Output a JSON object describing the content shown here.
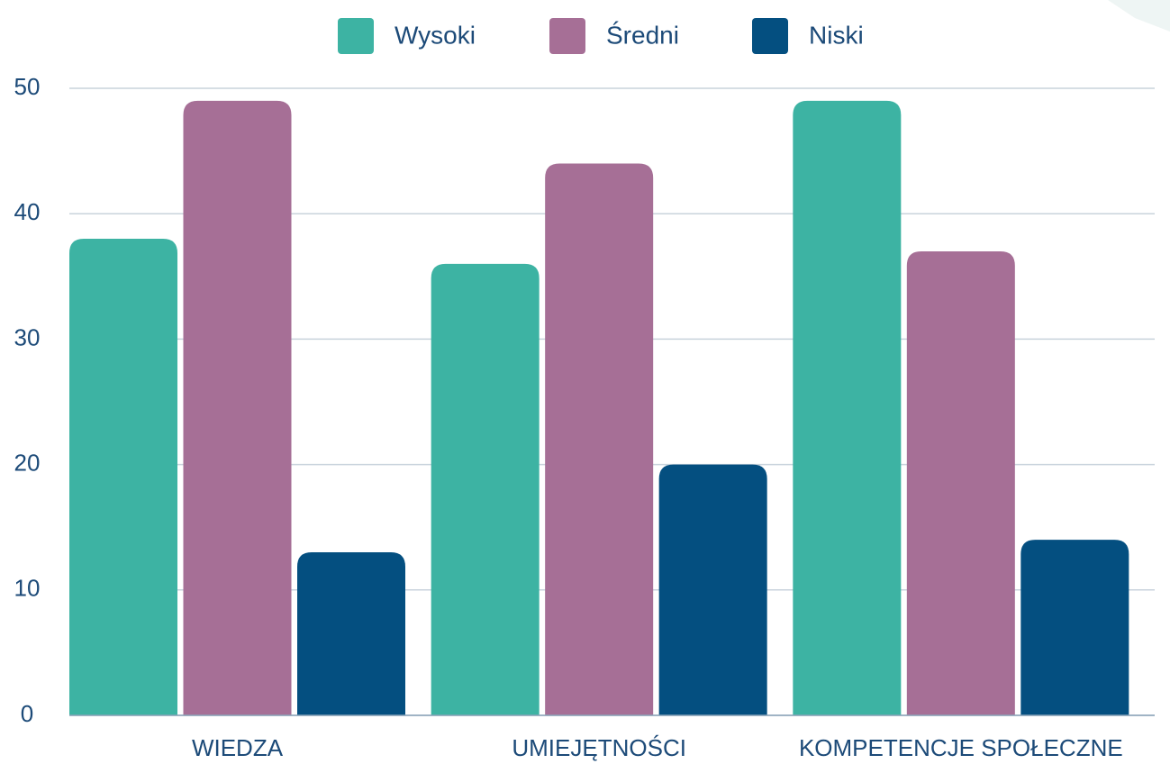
{
  "chart_data": {
    "type": "bar",
    "categories": [
      "WIEDZA",
      "UMIEJĘTNOŚCI",
      "KOMPETENCJE SPOŁECZNE"
    ],
    "series": [
      {
        "name": "Wysoki",
        "color": "#3db3a3",
        "values": [
          38,
          36,
          49
        ]
      },
      {
        "name": "Średni",
        "color": "#a66f96",
        "values": [
          49,
          44,
          37
        ]
      },
      {
        "name": "Niski",
        "color": "#044f80",
        "values": [
          13,
          20,
          14
        ]
      }
    ],
    "ylim": [
      0,
      50
    ],
    "yticks": [
      0,
      10,
      20,
      30,
      40,
      50
    ],
    "grid": true,
    "legend": "top"
  }
}
